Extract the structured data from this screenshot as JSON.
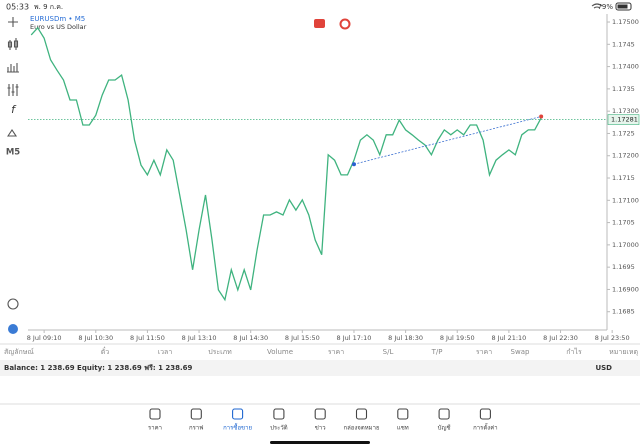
{
  "status_bar": {
    "time": "05:33",
    "date": "พ. 9 ก.ค.",
    "battery": "79%"
  },
  "chart_data": {
    "type": "line",
    "title": "EURUSDm • M5",
    "subtitle": "Euro vs US Dollar",
    "timeframe": "M5",
    "x": [
      "8 Jul 08:50",
      "8 Jul 09:00",
      "8 Jul 09:10",
      "8 Jul 09:20",
      "8 Jul 09:30",
      "8 Jul 09:40",
      "8 Jul 09:50",
      "8 Jul 10:00",
      "8 Jul 10:10",
      "8 Jul 10:20",
      "8 Jul 10:30",
      "8 Jul 10:40",
      "8 Jul 10:50",
      "8 Jul 11:00",
      "8 Jul 11:10",
      "8 Jul 11:20",
      "8 Jul 11:30",
      "8 Jul 11:40",
      "8 Jul 11:50",
      "8 Jul 12:00",
      "8 Jul 12:10",
      "8 Jul 12:20",
      "8 Jul 12:30",
      "8 Jul 12:40",
      "8 Jul 12:50",
      "8 Jul 13:00",
      "8 Jul 13:10",
      "8 Jul 13:20",
      "8 Jul 13:30",
      "8 Jul 13:40",
      "8 Jul 13:50",
      "8 Jul 14:00",
      "8 Jul 14:10",
      "8 Jul 14:20",
      "8 Jul 14:30",
      "8 Jul 14:40",
      "8 Jul 14:50",
      "8 Jul 15:00",
      "8 Jul 15:10",
      "8 Jul 15:20",
      "8 Jul 15:30",
      "8 Jul 15:40",
      "8 Jul 15:50",
      "8 Jul 16:00",
      "8 Jul 16:10",
      "8 Jul 16:20",
      "8 Jul 16:30",
      "8 Jul 16:40",
      "8 Jul 16:50",
      "8 Jul 17:00",
      "8 Jul 17:10",
      "8 Jul 17:20",
      "8 Jul 17:30",
      "8 Jul 17:40",
      "8 Jul 17:50",
      "8 Jul 18:00",
      "8 Jul 18:10",
      "8 Jul 18:20",
      "8 Jul 18:30",
      "8 Jul 18:40",
      "8 Jul 18:50",
      "8 Jul 19:00",
      "8 Jul 19:10",
      "8 Jul 19:20",
      "8 Jul 19:30",
      "8 Jul 19:40",
      "8 Jul 19:50",
      "8 Jul 20:00",
      "8 Jul 20:10",
      "8 Jul 20:20",
      "8 Jul 20:30",
      "8 Jul 20:40",
      "8 Jul 20:50",
      "8 Jul 21:00",
      "8 Jul 21:10",
      "8 Jul 21:20",
      "8 Jul 21:30",
      "8 Jul 21:40",
      "8 Jul 21:50",
      "8 Jul 22:00"
    ],
    "series": [
      {
        "color": "#3fb37f",
        "values": [
          1.17471,
          1.17487,
          1.17464,
          1.17415,
          1.17392,
          1.1737,
          1.17325,
          1.17325,
          1.17269,
          1.17269,
          1.17291,
          1.17336,
          1.1737,
          1.1737,
          1.17381,
          1.17325,
          1.17235,
          1.17179,
          1.17157,
          1.1719,
          1.17157,
          1.17213,
          1.1719,
          1.17112,
          1.17034,
          1.16944,
          1.17034,
          1.17112,
          1.17011,
          1.16899,
          1.16877,
          1.16944,
          1.16899,
          1.16944,
          1.16899,
          1.16989,
          1.17067,
          1.17067,
          1.17074,
          1.17067,
          1.17101,
          1.17078,
          1.17101,
          1.17067,
          1.17011,
          1.16978,
          1.17202,
          1.1719,
          1.17157,
          1.17157,
          1.1719,
          1.17235,
          1.17247,
          1.17235,
          1.17202,
          1.17247,
          1.17247,
          1.1728,
          1.17258,
          1.17247,
          1.17235,
          1.17224,
          1.17202,
          1.17235,
          1.17258,
          1.17247,
          1.17258,
          1.17247,
          1.17269,
          1.17269,
          1.17235,
          1.17157,
          1.1719,
          1.17202,
          1.17213,
          1.17202,
          1.17247,
          1.17258,
          1.17258,
          1.17285
        ]
      }
    ],
    "xlim": [
      "8 Jul 08:45",
      "8 Jul 23:42"
    ],
    "xticks": [
      "8 Jul 09:10",
      "8 Jul 10:30",
      "8 Jul 11:50",
      "8 Jul 13:10",
      "8 Jul 14:30",
      "8 Jul 15:50",
      "8 Jul 17:10",
      "8 Jul 18:30",
      "8 Jul 19:50",
      "8 Jul 21:10",
      "8 Jul 22:30",
      "8 Jul 23:50"
    ],
    "ylim": [
      1.16809,
      1.17518
    ],
    "yticks": [
      {
        "value": 1.175,
        "label": "1.17500"
      },
      1.1745,
      {
        "value": 1.174,
        "label": "1.17400"
      },
      1.1735,
      {
        "value": 1.173,
        "label": "1.17300"
      },
      1.1725,
      {
        "value": 1.172,
        "label": "1.17200"
      },
      1.1715,
      {
        "value": 1.171,
        "label": "1.17100"
      },
      1.1705,
      {
        "value": 1.17,
        "label": "1.17000"
      },
      1.1695,
      {
        "value": 1.169,
        "label": "1.16900"
      },
      1.1685
    ],
    "current_price": 1.17281,
    "trendline": {
      "x": [
        "8 Jul 17:10",
        "8 Jul 22:00"
      ],
      "values": [
        1.17181,
        1.17288
      ]
    }
  },
  "positions_table": {
    "columns": [
      "สัญลักษณ์",
      "ตั๋ว",
      "เวลา",
      "ประเภท",
      "Volume",
      "ราคา",
      "S/L",
      "T/P",
      "ราคา",
      "Swap",
      "กำไร",
      "หมายเหตุ"
    ]
  },
  "account": {
    "summary": "Balance: 1 238.69 Equity: 1 238.69 ฟรี: 1 238.69",
    "currency": "USD"
  },
  "tabs": [
    "ราคา",
    "กราฟ",
    "การซื้อขาย",
    "ประวัติ",
    "ข่าว",
    "กล่องจดหมาย",
    "แชท",
    "บัญชี",
    "การตั้งค่า"
  ]
}
